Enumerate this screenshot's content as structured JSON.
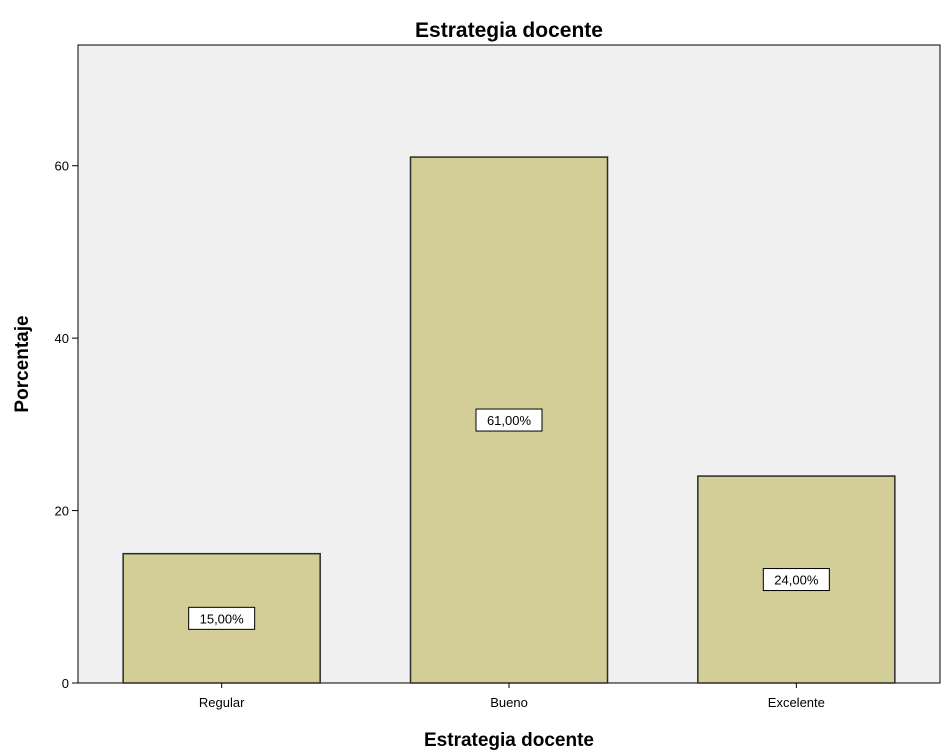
{
  "chart_data": {
    "type": "bar",
    "title": "Estrategia docente",
    "xlabel": "Estrategia docente",
    "ylabel": "Porcentaje",
    "categories": [
      "Regular",
      "Bueno",
      "Excelente"
    ],
    "values": [
      15,
      61,
      24
    ],
    "data_labels": [
      "15,00%",
      "61,00%",
      "24,00%"
    ],
    "yticks": [
      0,
      20,
      40,
      60
    ],
    "ylim": [
      0,
      74
    ],
    "grid": false,
    "legend": "none",
    "colors": {
      "bar_fill": "#d3ce98",
      "bar_stroke": "#2b2b2b",
      "plot_background": "#f0f0f0",
      "axis": "#000000"
    }
  }
}
